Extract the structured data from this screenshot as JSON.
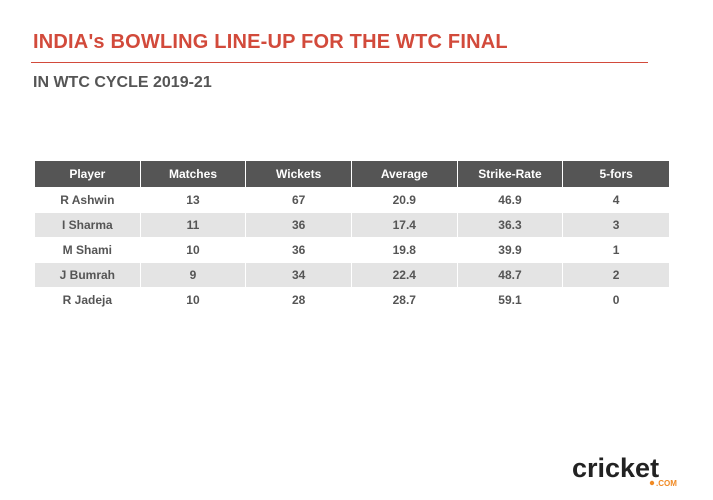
{
  "title": "INDIA's BOWLING LINE-UP FOR THE WTC FINAL",
  "subtitle": "IN WTC CYCLE 2019-21",
  "colors": {
    "title": "#d24a3b",
    "header_bg": "#555555",
    "text": "#555555",
    "alt_row": "#e4e4e4",
    "logo_accent": "#f08a24"
  },
  "chart_data": {
    "type": "table",
    "columns": [
      "Player",
      "Matches",
      "Wickets",
      "Average",
      "Strike-Rate",
      "5-fors"
    ],
    "rows": [
      [
        "R Ashwin",
        "13",
        "67",
        "20.9",
        "46.9",
        "4"
      ],
      [
        "I Sharma",
        "11",
        "36",
        "17.4",
        "36.3",
        "3"
      ],
      [
        "M Shami",
        "10",
        "36",
        "19.8",
        "39.9",
        "1"
      ],
      [
        "J Bumrah",
        "9",
        "34",
        "22.4",
        "48.7",
        "2"
      ],
      [
        "R Jadeja",
        "10",
        "28",
        "28.7",
        "59.1",
        "0"
      ]
    ]
  },
  "logo": {
    "main": "cricket",
    "sub": ".COM"
  }
}
